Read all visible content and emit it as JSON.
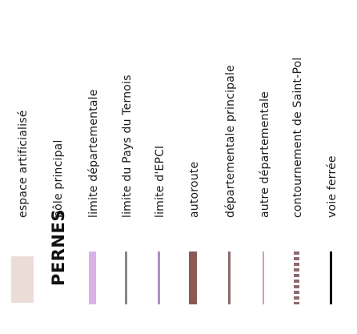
{
  "legend": {
    "items": [
      {
        "label": "espace artificialisé",
        "symbol": "area-swatch",
        "color": "#ecdcd8"
      },
      {
        "label": "pôle principal",
        "symbol": "town-name",
        "sample_text": "PERNES",
        "color": "#111111"
      },
      {
        "label": "limite départementale",
        "symbol": "line",
        "color": "#d9b2e6"
      },
      {
        "label": "limite du Pays du Ternois",
        "symbol": "line",
        "color": "#888888"
      },
      {
        "label": "limite d'EPCI",
        "symbol": "line",
        "color": "#b08fbf"
      },
      {
        "label": "autoroute",
        "symbol": "line",
        "color": "#8a5a54"
      },
      {
        "label": "départementale principale",
        "symbol": "line",
        "color": "#8c6a6c"
      },
      {
        "label": "autre départementale",
        "symbol": "line",
        "color": "#caa7a3"
      },
      {
        "label": "contournement de Saint-Pol",
        "symbol": "dashed-line",
        "color": "#8b6b6f"
      },
      {
        "label": "voie ferrée",
        "symbol": "line",
        "color": "#000000"
      }
    ]
  }
}
